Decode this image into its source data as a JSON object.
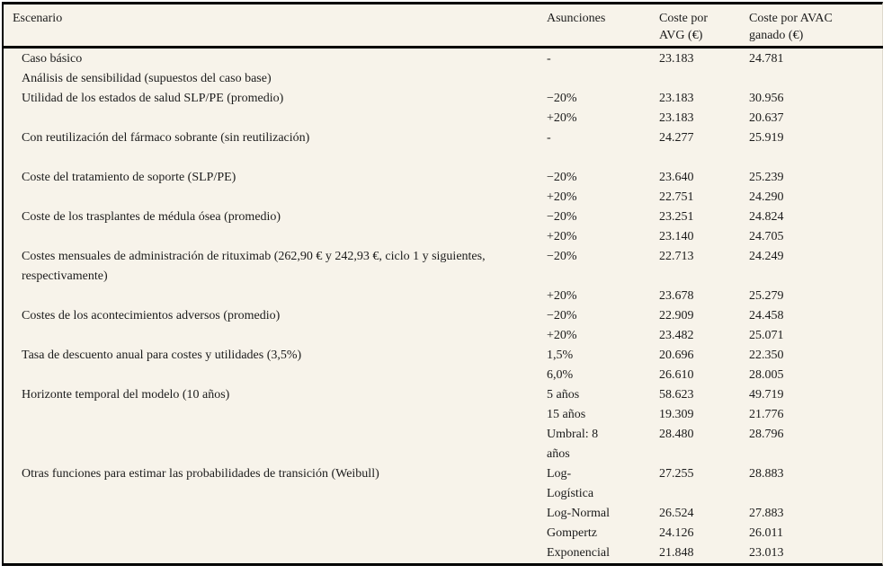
{
  "colors": {
    "page_background": "#ffffff",
    "table_background": "#f7f3ea",
    "rule": "#000000",
    "text": "#1b1b1b"
  },
  "table": {
    "headers": [
      "Escenario",
      "Asunciones",
      "Coste por AVG (€)",
      "Coste por AVAC ganado (€)"
    ],
    "rows": [
      {
        "scenario": "Caso básico",
        "assumption": "-",
        "cost_avg": "23.183",
        "cost_avac": "24.781"
      },
      {
        "scenario": "Análisis de sensibilidad (supuestos del caso base)",
        "assumption": "",
        "cost_avg": "",
        "cost_avac": ""
      },
      {
        "scenario": "Utilidad de los estados de salud SLP/PE (promedio)",
        "assumption": "−20%",
        "cost_avg": "23.183",
        "cost_avac": "30.956"
      },
      {
        "scenario": "",
        "assumption": "+20%",
        "cost_avg": "23.183",
        "cost_avac": "20.637"
      },
      {
        "scenario": "Con reutilización del fármaco sobrante (sin reutilización)",
        "assumption": "-",
        "cost_avg": "24.277",
        "cost_avac": "25.919"
      },
      {
        "scenario": "",
        "assumption": "",
        "cost_avg": "",
        "cost_avac": ""
      },
      {
        "scenario": "Coste del tratamiento de soporte (SLP/PE)",
        "assumption": "−20%",
        "cost_avg": "23.640",
        "cost_avac": "25.239"
      },
      {
        "scenario": "",
        "assumption": "+20%",
        "cost_avg": "22.751",
        "cost_avac": "24.290"
      },
      {
        "scenario": "Coste de los trasplantes de médula ósea (promedio)",
        "assumption": "−20%",
        "cost_avg": "23.251",
        "cost_avac": "24.824"
      },
      {
        "scenario": "",
        "assumption": "+20%",
        "cost_avg": "23.140",
        "cost_avac": "24.705"
      },
      {
        "scenario": "Costes mensuales de administración de rituximab (262,90 € y 242,93 €, ciclo 1 y siguientes, respectivamente)",
        "assumption": "−20%",
        "cost_avg": "22.713",
        "cost_avac": "24.249"
      },
      {
        "scenario": "",
        "assumption": "+20%",
        "cost_avg": "23.678",
        "cost_avac": "25.279"
      },
      {
        "scenario": "Costes de los acontecimientos adversos (promedio)",
        "assumption": "−20%",
        "cost_avg": "22.909",
        "cost_avac": "24.458"
      },
      {
        "scenario": "",
        "assumption": "+20%",
        "cost_avg": "23.482",
        "cost_avac": "25.071"
      },
      {
        "scenario": "Tasa de descuento anual para costes y utilidades (3,5%)",
        "assumption": "1,5%",
        "cost_avg": "20.696",
        "cost_avac": "22.350"
      },
      {
        "scenario": "",
        "assumption": "6,0%",
        "cost_avg": "26.610",
        "cost_avac": "28.005"
      },
      {
        "scenario": "Horizonte temporal del modelo (10 años)",
        "assumption": "5 años",
        "cost_avg": "58.623",
        "cost_avac": "49.719"
      },
      {
        "scenario": "",
        "assumption": "15 años",
        "cost_avg": "19.309",
        "cost_avac": "21.776"
      },
      {
        "scenario": "",
        "assumption": "Umbral: 8 años",
        "cost_avg": "28.480",
        "cost_avac": "28.796"
      },
      {
        "scenario": "Otras funciones para estimar las probabilidades de transición (Weibull)",
        "assumption": "Log-Logística",
        "cost_avg": "27.255",
        "cost_avac": "28.883"
      },
      {
        "scenario": "",
        "assumption": "Log-Normal",
        "cost_avg": "26.524",
        "cost_avac": "27.883"
      },
      {
        "scenario": "",
        "assumption": "Gompertz",
        "cost_avg": "24.126",
        "cost_avac": "26.011"
      },
      {
        "scenario": "",
        "assumption": "Exponencial",
        "cost_avg": "21.848",
        "cost_avac": "23.013"
      }
    ]
  }
}
